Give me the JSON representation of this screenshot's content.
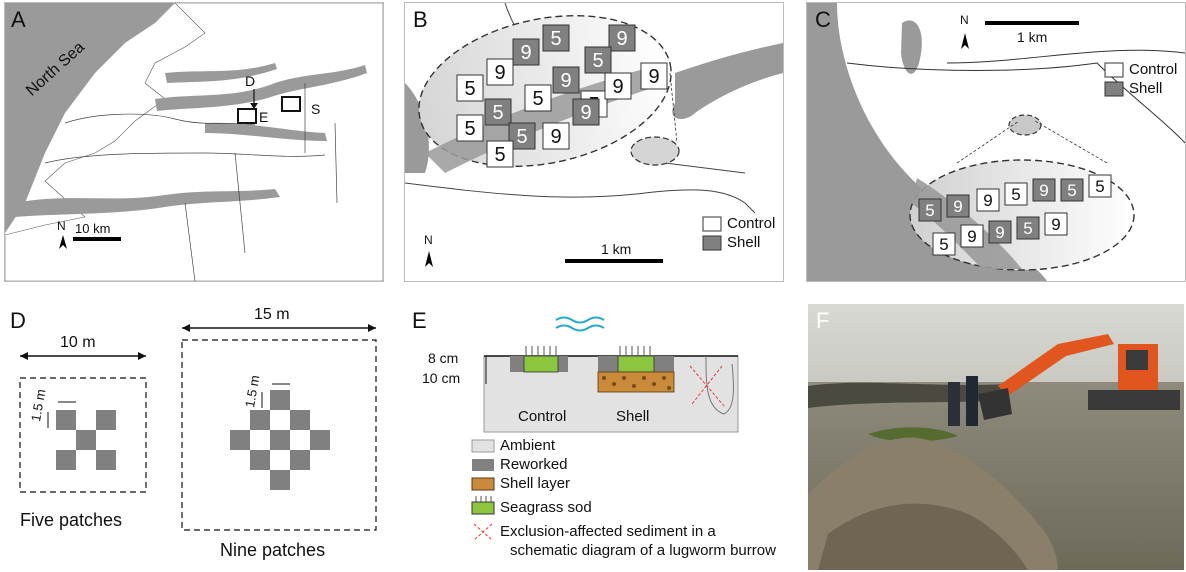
{
  "panels": {
    "a": {
      "label": "A",
      "sea_label": "North Sea",
      "site_d": "D",
      "site_e": "E",
      "site_s": "S",
      "north": "N",
      "scale": "10 km"
    },
    "b": {
      "label": "B",
      "north": "N",
      "scale": "1 km",
      "legend_control": "Control",
      "legend_shell": "Shell"
    },
    "c": {
      "label": "C",
      "north": "N",
      "scale": "1 km",
      "legend_control": "Control",
      "legend_shell": "Shell"
    },
    "d": {
      "label": "D",
      "five_width": "10 m",
      "nine_width": "15 m",
      "spacing": "1.5 m",
      "five_caption": "Five patches",
      "nine_caption": "Nine patches"
    },
    "e": {
      "label": "E",
      "depth_top": "8 cm",
      "depth_bottom": "10 cm",
      "col_control": "Control",
      "col_shell": "Shell",
      "legend": [
        "Ambient",
        "Reworked",
        "Shell layer",
        "Seagrass sod"
      ],
      "exclusion_line1": "Exclusion-affected sediment in a",
      "exclusion_line2": "schematic diagram of a lugworm burrow"
    },
    "f": {
      "label": "F"
    }
  },
  "plots_b": [
    {
      "n": "9",
      "t": "shell"
    },
    {
      "n": "5",
      "t": "shell"
    },
    {
      "n": "9",
      "t": "shell"
    },
    {
      "n": "5",
      "t": "control"
    },
    {
      "n": "9",
      "t": "control"
    },
    {
      "n": "5",
      "t": "shell"
    },
    {
      "n": "9",
      "t": "control"
    },
    {
      "n": "5",
      "t": "control"
    },
    {
      "n": "9",
      "t": "shell"
    },
    {
      "n": "5",
      "t": "control"
    },
    {
      "n": "9",
      "t": "control"
    },
    {
      "n": "5",
      "t": "control"
    },
    {
      "n": "5",
      "t": "shell"
    },
    {
      "n": "9",
      "t": "shell"
    },
    {
      "n": "5",
      "t": "shell"
    },
    {
      "n": "9",
      "t": "control"
    },
    {
      "n": "5",
      "t": "control"
    }
  ],
  "plots_c": [
    {
      "n": "5",
      "t": "shell"
    },
    {
      "n": "9",
      "t": "shell"
    },
    {
      "n": "9",
      "t": "control"
    },
    {
      "n": "5",
      "t": "control"
    },
    {
      "n": "9",
      "t": "shell"
    },
    {
      "n": "5",
      "t": "shell"
    },
    {
      "n": "5",
      "t": "control"
    },
    {
      "n": "5",
      "t": "control"
    },
    {
      "n": "9",
      "t": "control"
    },
    {
      "n": "9",
      "t": "shell"
    },
    {
      "n": "5",
      "t": "shell"
    },
    {
      "n": "9",
      "t": "control"
    }
  ],
  "colors": {
    "land_gray": "#9a9a9a",
    "shell_fill": "#808080",
    "seagrass": "#8cc63f",
    "water": "#2aa7d6",
    "lug": "#e53935"
  }
}
